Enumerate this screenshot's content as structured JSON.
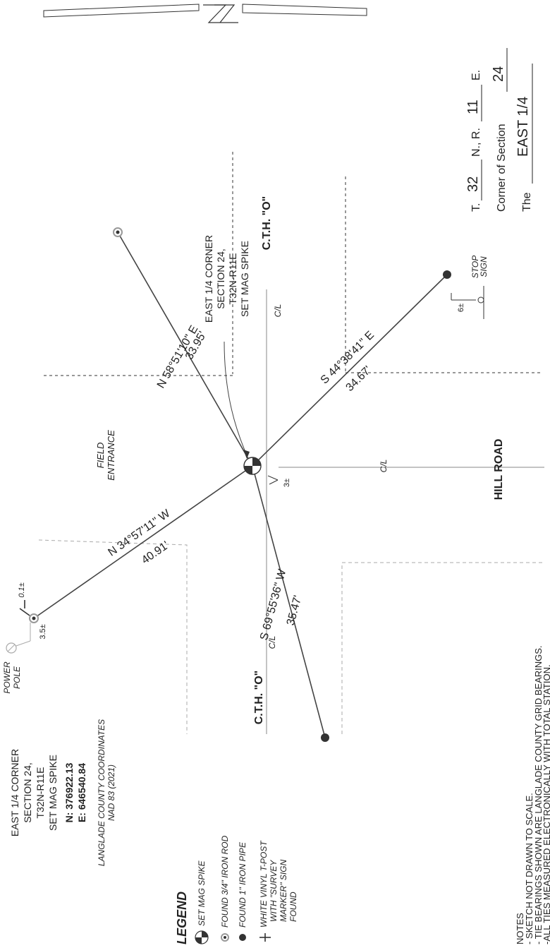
{
  "title_block": {
    "the_label": "The",
    "corner_name": "EAST 1/4",
    "corner_of_section_label": "Corner of Section",
    "section_number": "24",
    "t_label": "T.",
    "township": "32",
    "n_label": "N., R.",
    "range": "11",
    "e_label": "E."
  },
  "roads": {
    "cth_o_top": "C.T.H. \"O\"",
    "cth_o_bottom": "C.T.H. \"O\"",
    "hill_road": "HILL ROAD",
    "cl_labels": [
      "C/L",
      "C/L",
      "C/L"
    ]
  },
  "corner_label": [
    "EAST 1/4 CORNER",
    "SECTION 24,",
    "T32N-R11E",
    "SET MAG SPIKE"
  ],
  "features": {
    "field_entrance": [
      "FIELD",
      "ENTRANCE"
    ],
    "stop_sign": [
      "STOP",
      "SIGN"
    ],
    "power_pole": [
      "POWER",
      "POLE"
    ]
  },
  "ties": [
    {
      "bearing": "N 58°51'10\" E",
      "distance": "33.95'"
    },
    {
      "bearing": "S 44°38'41\" E",
      "distance": "34.67'"
    },
    {
      "bearing": "N 34°57'11\" W",
      "distance": "40.91'"
    },
    {
      "bearing": "S 69°55'36\" W",
      "distance": "35.47'"
    }
  ],
  "small_dims": {
    "stop_offset": "6±",
    "corner_offset": "3±",
    "pole_offset": "3.5±",
    "post_offset": "0.1±"
  },
  "coords": {
    "lines": [
      "EAST 1/4 CORNER",
      "SECTION 24,",
      "T32N-R11E",
      "SET MAG SPIKE"
    ],
    "north": "N: 376922.13",
    "east": "E: 646540.84",
    "system": "LANGLADE COUNTY COORDINATES",
    "datum": "NAD 83 (2021)"
  },
  "legend": {
    "title": "LEGEND",
    "items": [
      {
        "icon": "mag-spike-icon",
        "label": "SET MAG SPIKE"
      },
      {
        "icon": "iron-rod-icon",
        "label": "FOUND 3/4\" IRON ROD"
      },
      {
        "icon": "iron-pipe-icon",
        "label": "FOUND 1\" IRON PIPE"
      },
      {
        "icon": "t-post-icon",
        "label": [
          "WHITE VINYL T-POST",
          "WITH \"SURVEY",
          "MARKER\" SIGN",
          "FOUND"
        ]
      }
    ]
  },
  "notes": {
    "title": "NOTES",
    "lines": [
      "- SKETCH NOT DRAWN TO SCALE.",
      "- TIE BEARINGS SHOWN ARE LANGLADE COUNTY GRID BEARINGS.",
      "-ALL TIES MEASURED ELECTRONICALLY WITH TOTAL STATION."
    ]
  }
}
